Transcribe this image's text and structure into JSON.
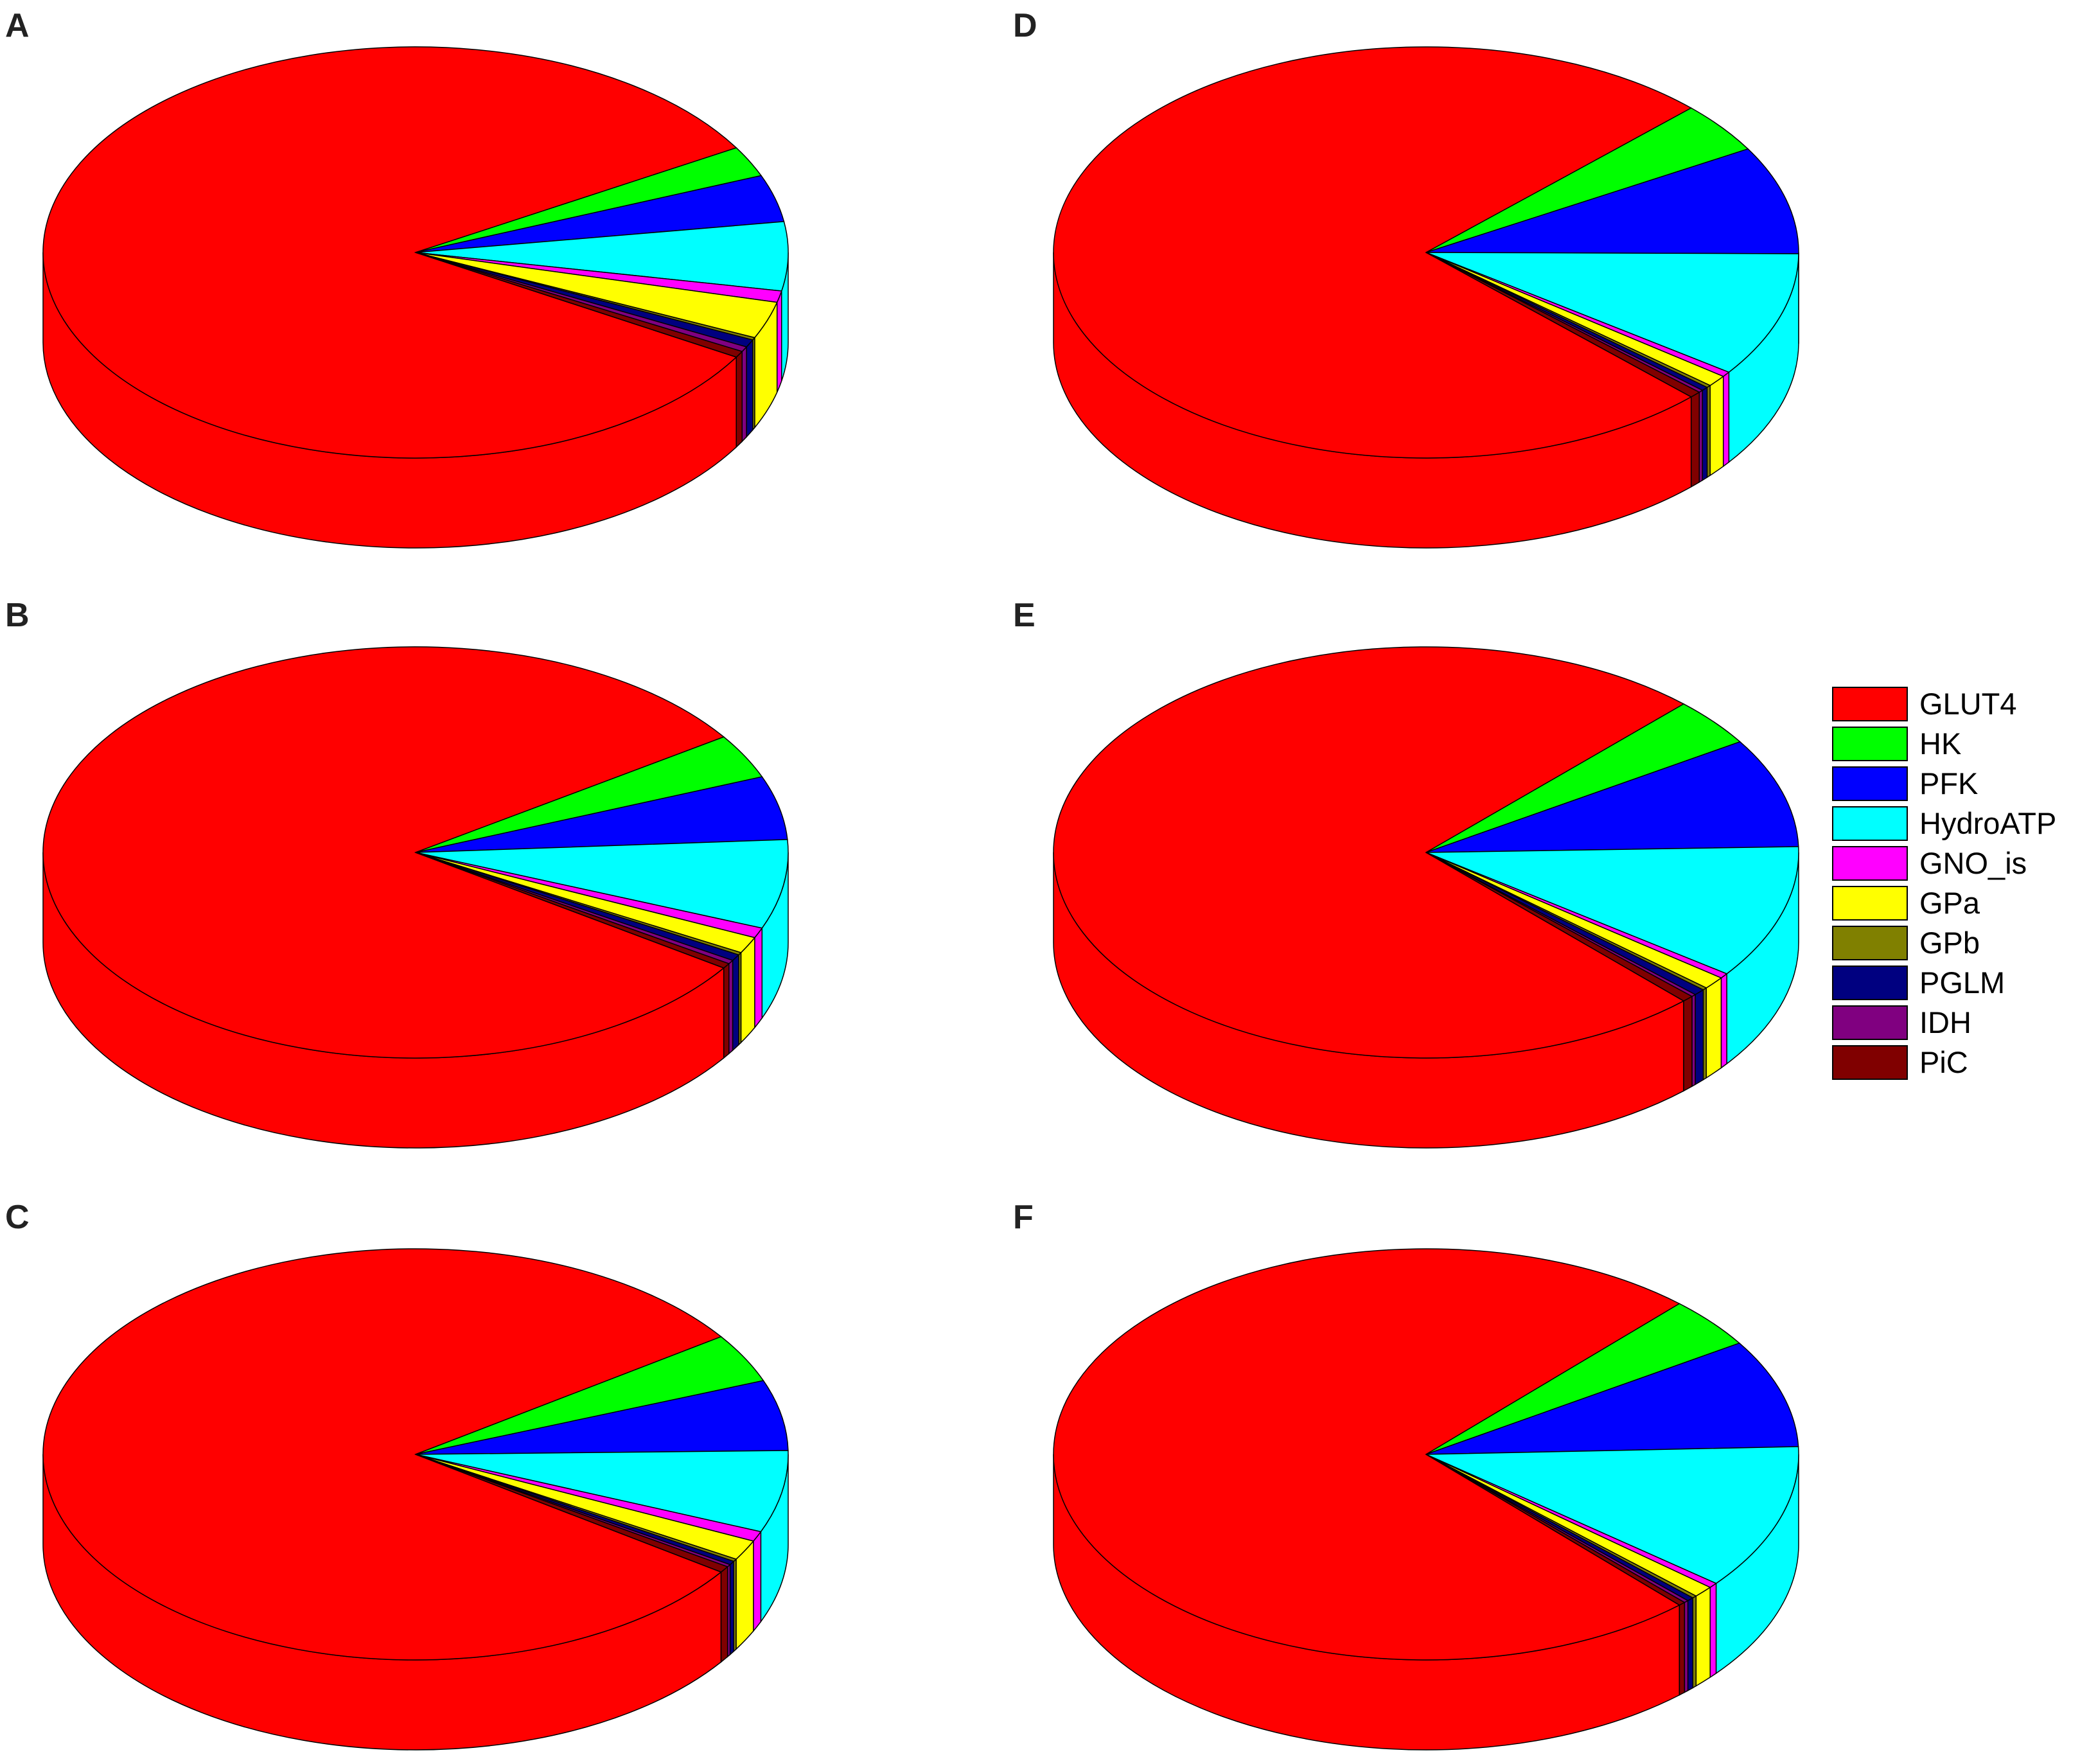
{
  "chart_data": {
    "type": "pie",
    "style": "3d-cylinder",
    "series": [
      {
        "name": "GLUT4",
        "color": "#ff0000"
      },
      {
        "name": "HK",
        "color": "#00ff00"
      },
      {
        "name": "PFK",
        "color": "#0000ff"
      },
      {
        "name": "HydroATP",
        "color": "#00ffff"
      },
      {
        "name": "GNO_is",
        "color": "#ff00ff"
      },
      {
        "name": "GPa",
        "color": "#ffff00"
      },
      {
        "name": "GPb",
        "color": "#808000"
      },
      {
        "name": "PGLM",
        "color": "#000080"
      },
      {
        "name": "IDH",
        "color": "#800080"
      },
      {
        "name": "PiC",
        "color": "#800000"
      }
    ],
    "legend_position": "right-middle",
    "panels": [
      {
        "label": "A",
        "values": [
          83.0,
          2.4,
          3.7,
          5.4,
          0.9,
          2.9,
          0.2,
          0.6,
          0.4,
          0.5
        ]
      },
      {
        "label": "B",
        "values": [
          81.0,
          3.5,
          5.0,
          7.0,
          0.8,
          1.3,
          0.2,
          0.5,
          0.3,
          0.4
        ]
      },
      {
        "label": "C",
        "values": [
          81.4,
          3.9,
          5.6,
          6.5,
          0.8,
          1.6,
          0.2,
          0.3,
          0.2,
          0.5
        ]
      },
      {
        "label": "D",
        "values": [
          75.2,
          4.0,
          8.5,
          9.8,
          0.4,
          0.9,
          0.2,
          0.3,
          0.2,
          0.5
        ]
      },
      {
        "label": "E",
        "values": [
          74.3,
          3.8,
          8.6,
          10.5,
          0.4,
          1.0,
          0.2,
          0.5,
          0.2,
          0.5
        ]
      },
      {
        "label": "F",
        "values": [
          73.8,
          4.0,
          8.5,
          11.4,
          0.4,
          0.9,
          0.2,
          0.3,
          0.2,
          0.3
        ]
      }
    ]
  }
}
